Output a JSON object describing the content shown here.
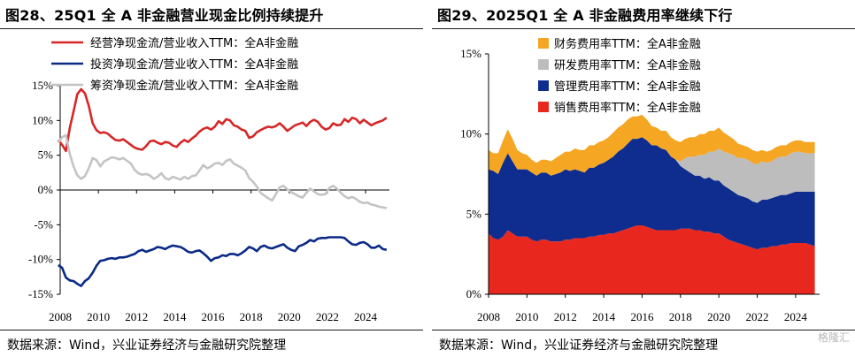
{
  "left": {
    "title": "图28、25Q1 全 A 非金融营业现金比例持续提升",
    "source": "数据来源：Wind，兴业证券经济与金融研究院整理"
  },
  "right": {
    "title": "图29、2025Q1 全 A 非金融费用率继续下行",
    "source": "数据来源：Wind，兴业证券经济与金融研究院整理"
  },
  "watermark": "格隆汇",
  "chart_data": [
    {
      "type": "line",
      "title": "图28、25Q1 全 A 非金融营业现金比例持续提升",
      "xlabel": "",
      "ylabel": "",
      "xlim": [
        2008,
        2025.25
      ],
      "ylim": [
        -15,
        15
      ],
      "x_ticks": [
        "2008",
        "2010",
        "2012",
        "2014",
        "2016",
        "2018",
        "2020",
        "2022",
        "2024"
      ],
      "y_ticks": [
        "15%",
        "10%",
        "5%",
        "0%",
        "-5%",
        "-10%",
        "-15%"
      ],
      "legend": "top",
      "grid": false,
      "series": [
        {
          "name": "经营净现金流/营业收入TTM：全A非金融",
          "color": "#d62728",
          "x": [
            2007.9,
            2008.1,
            2008.3,
            2008.5,
            2008.7,
            2008.9,
            2009.1,
            2009.3,
            2009.5,
            2009.7,
            2009.9,
            2010.1,
            2010.3,
            2010.5,
            2010.7,
            2010.9,
            2011.1,
            2011.3,
            2011.5,
            2011.7,
            2011.9,
            2012.1,
            2012.3,
            2012.5,
            2012.7,
            2012.9,
            2013.1,
            2013.3,
            2013.5,
            2013.7,
            2013.9,
            2014.1,
            2014.3,
            2014.5,
            2014.7,
            2014.9,
            2015.1,
            2015.3,
            2015.5,
            2015.7,
            2015.9,
            2016.1,
            2016.3,
            2016.5,
            2016.7,
            2016.9,
            2017.1,
            2017.3,
            2017.5,
            2017.7,
            2017.9,
            2018.1,
            2018.3,
            2018.5,
            2018.7,
            2018.9,
            2019.1,
            2019.3,
            2019.5,
            2019.7,
            2019.9,
            2020.1,
            2020.3,
            2020.5,
            2020.7,
            2020.9,
            2021.1,
            2021.3,
            2021.5,
            2021.7,
            2021.9,
            2022.1,
            2022.3,
            2022.5,
            2022.7,
            2022.9,
            2023.1,
            2023.3,
            2023.5,
            2023.7,
            2023.9,
            2024.1,
            2024.3,
            2024.5,
            2024.7,
            2024.9,
            2025.1
          ],
          "y": [
            7.2,
            6.5,
            5.6,
            8.9,
            11.3,
            13.8,
            14.5,
            13.9,
            12.1,
            9.6,
            8.6,
            8.2,
            8.3,
            8.1,
            7.6,
            7.2,
            7.1,
            7.3,
            6.9,
            6.5,
            6.1,
            5.9,
            5.8,
            6.3,
            7.0,
            7.1,
            6.8,
            6.6,
            6.9,
            6.8,
            6.4,
            6.2,
            6.8,
            7.2,
            6.9,
            7.4,
            7.8,
            8.4,
            8.8,
            9.0,
            8.7,
            9.1,
            9.9,
            9.5,
            10.2,
            10.0,
            9.3,
            9.1,
            8.7,
            8.5,
            7.5,
            7.7,
            8.3,
            8.6,
            8.9,
            9.1,
            9.0,
            9.2,
            9.6,
            9.1,
            8.5,
            8.9,
            9.3,
            9.5,
            9.7,
            9.2,
            9.8,
            10.1,
            9.8,
            9.1,
            8.7,
            8.9,
            9.6,
            9.3,
            9.4,
            10.2,
            9.8,
            10.4,
            10.2,
            9.6,
            10.1,
            9.7,
            9.3,
            9.6,
            9.8,
            10.0,
            10.4
          ]
        },
        {
          "name": "投资净现金流/营业收入TTM：全A非金融",
          "color": "#0b2a86",
          "x": [
            2007.9,
            2008.1,
            2008.3,
            2008.5,
            2008.7,
            2008.9,
            2009.1,
            2009.3,
            2009.5,
            2009.7,
            2009.9,
            2010.1,
            2010.3,
            2010.5,
            2010.7,
            2010.9,
            2011.1,
            2011.3,
            2011.5,
            2011.7,
            2011.9,
            2012.1,
            2012.3,
            2012.5,
            2012.7,
            2012.9,
            2013.1,
            2013.3,
            2013.5,
            2013.7,
            2013.9,
            2014.1,
            2014.3,
            2014.5,
            2014.7,
            2014.9,
            2015.1,
            2015.3,
            2015.5,
            2015.7,
            2015.9,
            2016.1,
            2016.3,
            2016.5,
            2016.7,
            2016.9,
            2017.1,
            2017.3,
            2017.5,
            2017.7,
            2017.9,
            2018.1,
            2018.3,
            2018.5,
            2018.7,
            2018.9,
            2019.1,
            2019.3,
            2019.5,
            2019.7,
            2019.9,
            2020.1,
            2020.3,
            2020.5,
            2020.7,
            2020.9,
            2021.1,
            2021.3,
            2021.5,
            2021.7,
            2021.9,
            2022.1,
            2022.3,
            2022.5,
            2022.7,
            2022.9,
            2023.1,
            2023.3,
            2023.5,
            2023.7,
            2023.9,
            2024.1,
            2024.3,
            2024.5,
            2024.7,
            2024.9,
            2025.1
          ],
          "y": [
            -10.8,
            -11.2,
            -12.6,
            -13.0,
            -13.1,
            -13.5,
            -13.8,
            -13.1,
            -12.7,
            -11.9,
            -10.9,
            -10.2,
            -10.1,
            -9.9,
            -9.8,
            -9.9,
            -9.7,
            -9.7,
            -9.6,
            -9.4,
            -9.2,
            -8.8,
            -8.6,
            -8.9,
            -8.7,
            -8.5,
            -8.2,
            -8.3,
            -8.5,
            -8.2,
            -8.0,
            -8.1,
            -8.2,
            -8.5,
            -8.9,
            -9.0,
            -8.8,
            -8.7,
            -9.1,
            -9.6,
            -10.2,
            -9.8,
            -9.7,
            -9.4,
            -9.5,
            -9.2,
            -9.2,
            -9.4,
            -9.1,
            -8.7,
            -8.2,
            -8.4,
            -8.8,
            -8.2,
            -8.0,
            -8.3,
            -8.4,
            -8.2,
            -8.0,
            -7.8,
            -8.3,
            -8.6,
            -8.8,
            -8.1,
            -7.9,
            -7.6,
            -7.2,
            -7.4,
            -7.0,
            -6.9,
            -6.9,
            -6.8,
            -6.8,
            -6.8,
            -6.8,
            -6.9,
            -7.4,
            -7.8,
            -7.9,
            -7.6,
            -7.5,
            -7.8,
            -8.3,
            -8.3,
            -8.0,
            -8.5,
            -8.6
          ]
        },
        {
          "name": "筹资净现金流/营业收入TTM：全A非金融",
          "color": "#c4c4c4",
          "x": [
            2007.9,
            2008.1,
            2008.3,
            2008.5,
            2008.7,
            2008.9,
            2009.1,
            2009.3,
            2009.5,
            2009.7,
            2009.9,
            2010.1,
            2010.3,
            2010.5,
            2010.7,
            2010.9,
            2011.1,
            2011.3,
            2011.5,
            2011.7,
            2011.9,
            2012.1,
            2012.3,
            2012.5,
            2012.7,
            2012.9,
            2013.1,
            2013.3,
            2013.5,
            2013.7,
            2013.9,
            2014.1,
            2014.3,
            2014.5,
            2014.7,
            2014.9,
            2015.1,
            2015.3,
            2015.5,
            2015.7,
            2015.9,
            2016.1,
            2016.3,
            2016.5,
            2016.7,
            2016.9,
            2017.1,
            2017.3,
            2017.5,
            2017.7,
            2017.9,
            2018.1,
            2018.3,
            2018.5,
            2018.7,
            2018.9,
            2019.1,
            2019.3,
            2019.5,
            2019.7,
            2019.9,
            2020.1,
            2020.3,
            2020.5,
            2020.7,
            2020.9,
            2021.1,
            2021.3,
            2021.5,
            2021.7,
            2021.9,
            2022.1,
            2022.3,
            2022.5,
            2022.7,
            2022.9,
            2023.1,
            2023.3,
            2023.5,
            2023.7,
            2023.9,
            2024.1,
            2024.3,
            2024.5,
            2024.7,
            2024.9,
            2025.1
          ],
          "y": [
            6.8,
            7.6,
            7.9,
            5.2,
            3.4,
            2.1,
            1.6,
            2.0,
            3.1,
            4.6,
            4.3,
            3.4,
            4.1,
            4.4,
            4.7,
            4.6,
            4.4,
            4.6,
            4.2,
            3.8,
            2.9,
            2.4,
            2.2,
            2.3,
            2.1,
            1.6,
            1.9,
            2.4,
            1.7,
            1.5,
            1.9,
            1.7,
            1.5,
            1.9,
            1.6,
            2.0,
            2.1,
            2.8,
            3.6,
            3.1,
            3.4,
            3.8,
            3.9,
            3.6,
            4.2,
            4.4,
            3.8,
            3.5,
            3.2,
            2.8,
            1.7,
            1.2,
            0.5,
            -0.4,
            -0.8,
            -1.2,
            -1.5,
            -0.6,
            0.4,
            0.6,
            0.1,
            -0.3,
            -0.6,
            -0.9,
            -1.1,
            -0.4,
            0.2,
            -0.2,
            -0.6,
            -0.7,
            -0.6,
            0.3,
            0.6,
            0.2,
            -0.4,
            -0.9,
            -1.2,
            -1.0,
            -1.3,
            -1.7,
            -1.9,
            -1.8,
            -2.1,
            -2.2,
            -2.4,
            -2.5,
            -2.6
          ]
        }
      ]
    },
    {
      "type": "area",
      "stacked": true,
      "title": "图29、2025Q1 全 A 非金融费用率继续下行",
      "xlabel": "",
      "ylabel": "",
      "xlim": [
        2008,
        2025.25
      ],
      "ylim": [
        0,
        15
      ],
      "x_ticks": [
        "2008",
        "2010",
        "2012",
        "2014",
        "2016",
        "2018",
        "2020",
        "2022",
        "2024"
      ],
      "y_ticks": [
        "15%",
        "10%",
        "5%",
        "0%"
      ],
      "legend": "top-right",
      "grid": false,
      "x": [
        2008.0,
        2008.25,
        2008.5,
        2008.75,
        2009.0,
        2009.25,
        2009.5,
        2009.75,
        2010.0,
        2010.25,
        2010.5,
        2010.75,
        2011.0,
        2011.25,
        2011.5,
        2011.75,
        2012.0,
        2012.25,
        2012.5,
        2012.75,
        2013.0,
        2013.25,
        2013.5,
        2013.75,
        2014.0,
        2014.25,
        2014.5,
        2014.75,
        2015.0,
        2015.25,
        2015.5,
        2015.75,
        2016.0,
        2016.25,
        2016.5,
        2016.75,
        2017.0,
        2017.25,
        2017.5,
        2017.75,
        2018.0,
        2018.25,
        2018.5,
        2018.75,
        2019.0,
        2019.25,
        2019.5,
        2019.75,
        2020.0,
        2020.25,
        2020.5,
        2020.75,
        2021.0,
        2021.25,
        2021.5,
        2021.75,
        2022.0,
        2022.25,
        2022.5,
        2022.75,
        2023.0,
        2023.25,
        2023.5,
        2023.75,
        2024.0,
        2024.25,
        2024.5,
        2024.75,
        2025.0
      ],
      "series": [
        {
          "name": "销售费用率TTM：全A非金融",
          "color": "#e8281e",
          "values": [
            3.8,
            3.5,
            3.4,
            3.6,
            4.0,
            3.8,
            3.6,
            3.6,
            3.6,
            3.4,
            3.3,
            3.4,
            3.4,
            3.3,
            3.3,
            3.3,
            3.4,
            3.4,
            3.5,
            3.5,
            3.5,
            3.6,
            3.6,
            3.7,
            3.7,
            3.8,
            3.8,
            3.9,
            4.0,
            4.1,
            4.2,
            4.3,
            4.3,
            4.2,
            4.1,
            4.0,
            4.0,
            4.0,
            4.0,
            4.0,
            4.1,
            4.1,
            4.1,
            4.0,
            4.0,
            3.9,
            3.9,
            3.8,
            3.8,
            3.6,
            3.4,
            3.3,
            3.2,
            3.1,
            3.0,
            2.9,
            2.8,
            2.9,
            2.9,
            3.0,
            3.0,
            3.1,
            3.1,
            3.2,
            3.2,
            3.2,
            3.2,
            3.1,
            3.0
          ]
        },
        {
          "name": "管理费用率TTM：全A非金融",
          "color": "#0e2d8e",
          "values": [
            4.0,
            4.2,
            4.1,
            4.6,
            4.8,
            4.5,
            4.2,
            4.2,
            4.2,
            4.2,
            4.1,
            4.2,
            4.2,
            4.1,
            4.2,
            4.3,
            4.4,
            4.3,
            4.3,
            4.2,
            4.1,
            4.3,
            4.3,
            4.4,
            4.5,
            4.6,
            4.8,
            5.0,
            5.1,
            5.3,
            5.5,
            5.4,
            5.5,
            5.4,
            5.2,
            5.3,
            5.1,
            5.0,
            4.6,
            4.4,
            3.9,
            3.7,
            3.5,
            3.4,
            3.4,
            3.3,
            3.4,
            3.3,
            3.3,
            3.2,
            3.2,
            3.1,
            3.0,
            3.0,
            3.0,
            2.9,
            2.9,
            3.0,
            3.0,
            3.0,
            3.1,
            3.1,
            3.1,
            3.1,
            3.2,
            3.2,
            3.2,
            3.3,
            3.4
          ]
        },
        {
          "name": "研发费用率TTM：全A非金融",
          "color": "#bdbdbd",
          "values": [
            0,
            0,
            0,
            0,
            0,
            0,
            0,
            0,
            0,
            0,
            0,
            0,
            0,
            0,
            0,
            0,
            0,
            0,
            0,
            0,
            0,
            0,
            0,
            0,
            0,
            0,
            0,
            0,
            0,
            0,
            0,
            0,
            0,
            0,
            0,
            0,
            0,
            0,
            0,
            0,
            0.3,
            0.7,
            1.0,
            1.2,
            1.3,
            1.5,
            1.6,
            1.8,
            2.0,
            2.1,
            2.2,
            2.3,
            2.3,
            2.4,
            2.4,
            2.4,
            2.4,
            2.4,
            2.3,
            2.3,
            2.4,
            2.4,
            2.4,
            2.5,
            2.5,
            2.5,
            2.4,
            2.4,
            2.4
          ]
        },
        {
          "name": "财务费用率TTM：全A非金融",
          "color": "#f5a623",
          "values": [
            1.2,
            1.1,
            1.3,
            1.4,
            1.5,
            1.4,
            1.2,
            1.0,
            0.9,
            0.8,
            0.8,
            0.8,
            0.8,
            0.9,
            1.0,
            1.1,
            1.1,
            1.2,
            1.3,
            1.3,
            1.4,
            1.4,
            1.4,
            1.4,
            1.4,
            1.4,
            1.5,
            1.5,
            1.5,
            1.5,
            1.4,
            1.4,
            1.4,
            1.3,
            1.2,
            1.1,
            1.1,
            1.2,
            1.2,
            1.2,
            1.2,
            1.2,
            1.2,
            1.2,
            1.3,
            1.3,
            1.3,
            1.3,
            1.3,
            1.2,
            1.1,
            1.0,
            0.9,
            0.8,
            0.8,
            0.8,
            0.8,
            0.7,
            0.7,
            0.7,
            0.7,
            0.7,
            0.7,
            0.7,
            0.7,
            0.7,
            0.7,
            0.7,
            0.7
          ]
        }
      ]
    }
  ]
}
